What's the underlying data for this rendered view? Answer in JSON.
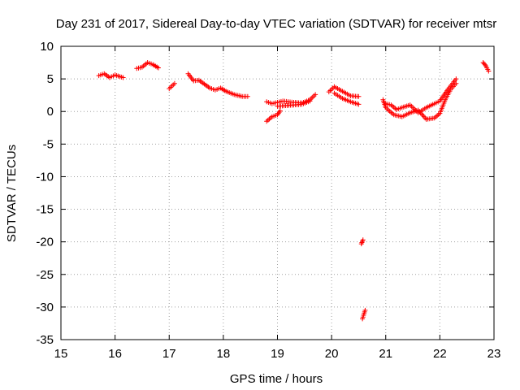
{
  "chart_data": {
    "type": "scatter",
    "title": "Day 231 of 2017, Sidereal Day-to-day VTEC variation (SDTVAR) for receiver mtsr",
    "xlabel": "GPS time / hours",
    "ylabel": "SDTVAR / TECUs",
    "xlim": [
      15,
      23
    ],
    "ylim": [
      -35,
      10
    ],
    "x_ticks": [
      15,
      16,
      17,
      18,
      19,
      20,
      21,
      22,
      23
    ],
    "y_ticks": [
      10,
      5,
      0,
      -5,
      -10,
      -15,
      -20,
      -25,
      -30,
      -35
    ],
    "grid": true,
    "marker": "plus",
    "series_color": "#ff0000",
    "segments": [
      {
        "x": [
          15.7,
          15.8,
          15.9,
          16.0,
          16.15
        ],
        "y": [
          5.5,
          5.8,
          5.2,
          5.6,
          5.2
        ]
      },
      {
        "x": [
          16.4,
          16.5,
          16.6,
          16.7,
          16.8
        ],
        "y": [
          6.6,
          6.8,
          7.5,
          7.2,
          6.7
        ]
      },
      {
        "x": [
          17.0,
          17.1
        ],
        "y": [
          3.5,
          4.3
        ]
      },
      {
        "x": [
          17.35,
          17.45,
          17.55,
          17.65,
          17.75,
          17.85,
          17.95,
          18.05,
          18.2,
          18.35,
          18.45
        ],
        "y": [
          5.8,
          4.7,
          4.8,
          4.2,
          3.6,
          3.3,
          3.6,
          3.1,
          2.6,
          2.3,
          2.3
        ]
      },
      {
        "x": [
          18.8,
          18.9,
          19.0,
          19.05
        ],
        "y": [
          -1.5,
          -0.8,
          -0.5,
          0.1
        ]
      },
      {
        "x": [
          18.8,
          18.9,
          19.0,
          19.1,
          19.2,
          19.3,
          19.45,
          19.6,
          19.7
        ],
        "y": [
          1.5,
          1.2,
          1.4,
          1.6,
          1.5,
          1.4,
          1.3,
          1.8,
          2.6
        ]
      },
      {
        "x": [
          19.0,
          19.15,
          19.3,
          19.45,
          19.6
        ],
        "y": [
          0.8,
          0.9,
          1.0,
          1.1,
          1.6
        ]
      },
      {
        "x": [
          19.95,
          20.05,
          20.2,
          20.35,
          20.5
        ],
        "y": [
          3.0,
          3.8,
          3.1,
          2.4,
          2.3
        ]
      },
      {
        "x": [
          20.05,
          20.2,
          20.35,
          20.5
        ],
        "y": [
          2.8,
          2.0,
          1.5,
          1.1
        ]
      },
      {
        "x": [
          20.55,
          20.58
        ],
        "y": [
          -20.3,
          -19.7
        ]
      },
      {
        "x": [
          20.57,
          20.6,
          20.62
        ],
        "y": [
          -31.8,
          -31.0,
          -30.5
        ]
      },
      {
        "x": [
          20.95,
          21.0,
          21.05,
          21.15,
          21.3,
          21.45,
          21.6,
          21.75,
          21.9,
          22.0,
          22.1,
          22.2,
          22.3
        ],
        "y": [
          1.8,
          0.6,
          0.2,
          -0.5,
          -0.8,
          -0.2,
          0.2,
          -1.2,
          -1.0,
          -0.3,
          1.8,
          3.4,
          4.3
        ]
      },
      {
        "x": [
          21.0,
          21.1,
          21.2,
          21.3,
          21.45,
          21.6,
          21.75,
          21.9,
          22.0,
          22.15,
          22.3
        ],
        "y": [
          1.2,
          1.0,
          0.3,
          0.6,
          1.0,
          -0.2,
          0.6,
          1.2,
          1.6,
          3.4,
          5.0
        ]
      },
      {
        "x": [
          22.8,
          22.85,
          22.9
        ],
        "y": [
          7.5,
          7.0,
          6.2
        ]
      }
    ]
  }
}
